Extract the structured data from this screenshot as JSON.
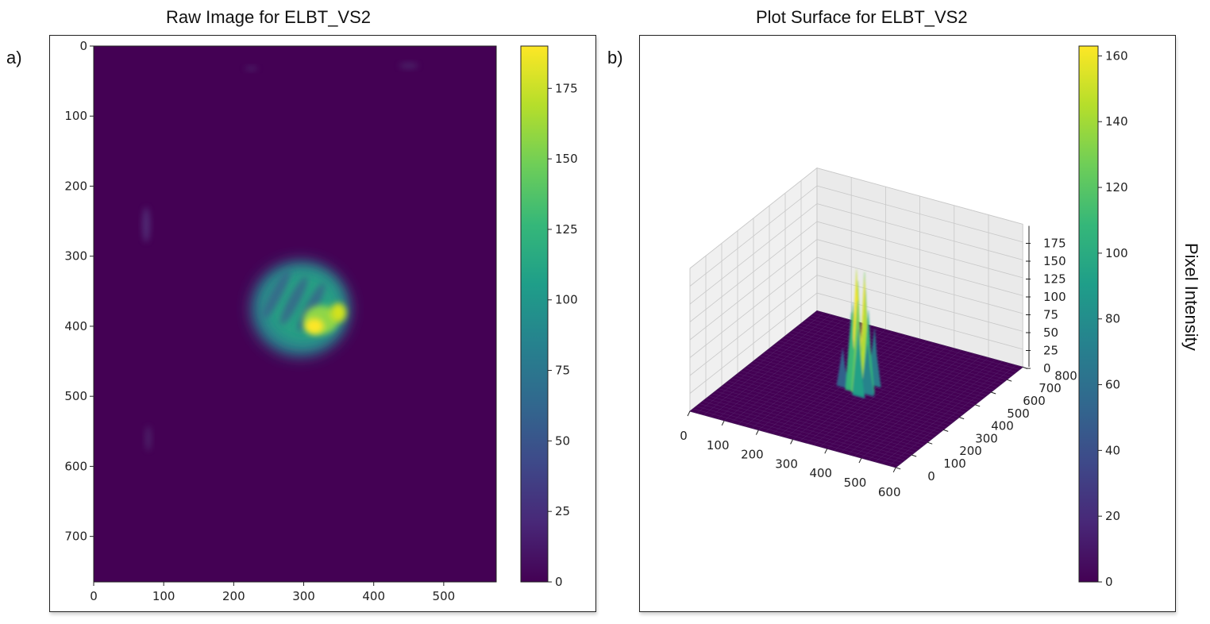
{
  "panels": [
    {
      "label": "a)",
      "title": "Raw Image for ELBT_VS2"
    },
    {
      "label": "b)",
      "title": "Plot Surface for ELBT_VS2"
    }
  ],
  "colorbar_label": "Pixel Intensity",
  "colors": {
    "background_purple": "#440154",
    "viridis": [
      "#440154",
      "#482878",
      "#3e4989",
      "#31688e",
      "#26828e",
      "#1f9e89",
      "#35b779",
      "#6ece58",
      "#b5de2b",
      "#fde725"
    ]
  },
  "chart_data": [
    {
      "type": "heatmap",
      "title": "Raw Image for ELBT_VS2",
      "x_range": [
        0,
        575
      ],
      "y_range": [
        0,
        765
      ],
      "x_ticks": [
        0,
        100,
        200,
        300,
        400,
        500
      ],
      "y_ticks": [
        0,
        100,
        200,
        300,
        400,
        500,
        600,
        700
      ],
      "y_inverted": true,
      "colorbar": {
        "min": 0,
        "max": 190,
        "ticks": [
          0,
          25,
          50,
          75,
          100,
          125,
          150,
          175
        ]
      },
      "features": [
        {
          "name": "main blob",
          "x": 295,
          "y": 375,
          "peak": 190
        },
        {
          "name": "bright spot",
          "x": 315,
          "y": 400,
          "peak": 190
        }
      ]
    },
    {
      "type": "surface",
      "title": "Plot Surface for ELBT_VS2",
      "x_ticks": [
        0,
        100,
        200,
        300,
        400,
        500,
        600
      ],
      "y_ticks": [
        0,
        100,
        200,
        300,
        400,
        500,
        600,
        700,
        800
      ],
      "z_ticks": [
        0,
        25,
        50,
        75,
        100,
        125,
        150,
        175
      ],
      "colorbar": {
        "min": 0,
        "max": 163,
        "ticks": [
          0,
          20,
          40,
          60,
          80,
          100,
          120,
          140,
          160
        ],
        "label": "Pixel Intensity"
      },
      "peak": {
        "x": 300,
        "y": 400,
        "z": 170
      }
    }
  ]
}
